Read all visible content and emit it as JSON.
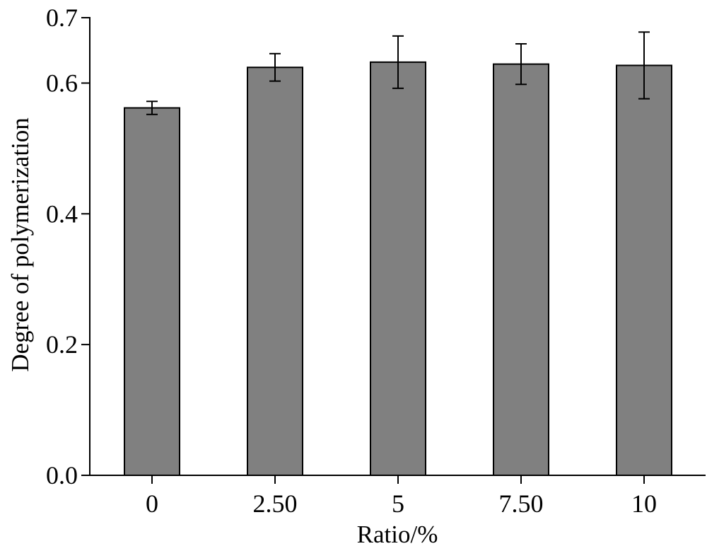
{
  "chart_data": {
    "type": "bar",
    "title": "",
    "xlabel": "Ratio/%",
    "ylabel": "Degree of polymerization",
    "categories": [
      "0",
      "2.50",
      "5",
      "7.50",
      "10"
    ],
    "values": [
      0.562,
      0.624,
      0.632,
      0.629,
      0.627
    ],
    "errors": [
      0.01,
      0.021,
      0.04,
      0.031,
      0.051
    ],
    "ylim": [
      0,
      0.7
    ],
    "yticks": [
      0.0,
      0.2,
      0.4,
      0.6,
      0.7
    ],
    "ytick_labels": [
      "0.0",
      "0.2",
      "0.4",
      "0.6",
      "0.7"
    ],
    "bar_color": "#808080",
    "grid": false,
    "legend": "none"
  }
}
